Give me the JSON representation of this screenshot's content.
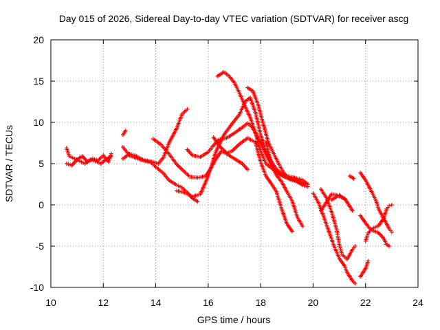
{
  "chart_data": {
    "type": "scatter",
    "title": "Day 015 of 2026, Sidereal Day-to-day VTEC variation (SDTVAR) for receiver ascg",
    "xlabel": "GPS time / hours",
    "ylabel": "SDTVAR / TECUs",
    "xlim": [
      10,
      24
    ],
    "ylim": [
      -10,
      20
    ],
    "xticks": [
      "10",
      "12",
      "14",
      "16",
      "18",
      "20",
      "22",
      "24"
    ],
    "yticks": [
      "-10",
      "-5",
      "0",
      "5",
      "10",
      "15",
      "20"
    ],
    "grid": true,
    "marker": "+",
    "color": "#ff0000",
    "series": [
      {
        "name": "s1",
        "points": [
          [
            10.6,
            6.9
          ],
          [
            10.7,
            5.9
          ],
          [
            10.9,
            5.6
          ],
          [
            11.1,
            5.3
          ],
          [
            11.3,
            5.0
          ],
          [
            11.5,
            5.5
          ],
          [
            11.7,
            5.3
          ],
          [
            11.9,
            5.0
          ],
          [
            12.1,
            5.5
          ],
          [
            12.3,
            5.9
          ]
        ]
      },
      {
        "name": "s2",
        "points": [
          [
            10.6,
            5.0
          ],
          [
            10.8,
            4.8
          ],
          [
            11.0,
            5.5
          ],
          [
            11.2,
            5.9
          ],
          [
            11.4,
            5.2
          ],
          [
            11.6,
            5.6
          ],
          [
            11.8,
            5.4
          ],
          [
            12.0,
            6.0
          ],
          [
            12.2,
            5.2
          ],
          [
            12.3,
            6.2
          ]
        ]
      },
      {
        "name": "s3",
        "points": [
          [
            12.75,
            8.5
          ],
          [
            12.85,
            9.0
          ]
        ]
      },
      {
        "name": "s4",
        "points": [
          [
            12.75,
            5.6
          ],
          [
            13.0,
            6.2
          ],
          [
            13.2,
            6.0
          ],
          [
            13.5,
            5.5
          ],
          [
            13.8,
            5.2
          ],
          [
            14.0,
            4.6
          ],
          [
            14.3,
            3.8
          ],
          [
            14.5,
            3.0
          ],
          [
            14.8,
            2.4
          ],
          [
            15.0,
            2.1
          ],
          [
            15.2,
            1.5
          ],
          [
            15.4,
            0.8
          ],
          [
            15.6,
            0.4
          ]
        ]
      },
      {
        "name": "s5",
        "points": [
          [
            12.75,
            7.0
          ],
          [
            13.0,
            6.0
          ],
          [
            13.3,
            5.6
          ],
          [
            13.6,
            5.3
          ],
          [
            13.9,
            5.2
          ],
          [
            14.1,
            5.0
          ],
          [
            14.3,
            5.8
          ],
          [
            14.5,
            7.5
          ],
          [
            14.8,
            9.3
          ],
          [
            15.0,
            11.0
          ],
          [
            15.2,
            11.6
          ]
        ]
      },
      {
        "name": "s6",
        "points": [
          [
            13.9,
            8.0
          ],
          [
            14.2,
            7.3
          ],
          [
            14.5,
            6.2
          ],
          [
            14.8,
            4.9
          ],
          [
            15.1,
            4.0
          ],
          [
            15.3,
            3.4
          ],
          [
            15.6,
            3.3
          ],
          [
            15.9,
            3.5
          ],
          [
            16.1,
            4.4
          ],
          [
            16.3,
            5.6
          ],
          [
            16.5,
            6.5
          ],
          [
            16.7,
            6.2
          ],
          [
            17.0,
            5.6
          ],
          [
            17.3,
            5.0
          ],
          [
            17.5,
            4.3
          ]
        ]
      },
      {
        "name": "s7",
        "points": [
          [
            15.2,
            6.7
          ],
          [
            15.4,
            6.0
          ],
          [
            15.7,
            5.8
          ],
          [
            16.0,
            6.4
          ],
          [
            16.2,
            7.2
          ],
          [
            16.4,
            7.9
          ],
          [
            16.7,
            8.1
          ],
          [
            17.0,
            8.7
          ],
          [
            17.3,
            9.4
          ],
          [
            17.5,
            9.9
          ],
          [
            17.7,
            9.3
          ],
          [
            18.0,
            7.5
          ],
          [
            18.3,
            5.5
          ],
          [
            18.6,
            3.9
          ],
          [
            18.9,
            3.4
          ],
          [
            19.2,
            3.1
          ],
          [
            19.5,
            2.9
          ]
        ]
      },
      {
        "name": "s8",
        "points": [
          [
            14.8,
            1.7
          ],
          [
            15.1,
            1.5
          ],
          [
            15.4,
            1.0
          ],
          [
            15.7,
            1.3
          ],
          [
            16.0,
            3.5
          ],
          [
            16.3,
            6.5
          ],
          [
            16.6,
            8.5
          ],
          [
            16.9,
            9.8
          ],
          [
            17.2,
            11.0
          ],
          [
            17.4,
            12.5
          ],
          [
            17.6,
            13.0
          ],
          [
            17.8,
            11.2
          ],
          [
            18.0,
            8.5
          ],
          [
            18.2,
            6.5
          ],
          [
            18.4,
            5.3
          ],
          [
            18.6,
            4.3
          ],
          [
            18.8,
            3.8
          ],
          [
            19.0,
            3.5
          ],
          [
            19.3,
            3.3
          ],
          [
            19.6,
            3.0
          ],
          [
            19.8,
            2.5
          ]
        ]
      },
      {
        "name": "s9",
        "points": [
          [
            16.35,
            15.6
          ],
          [
            16.6,
            16.1
          ],
          [
            16.8,
            15.6
          ],
          [
            17.0,
            14.8
          ],
          [
            17.2,
            13.5
          ],
          [
            17.4,
            12.0
          ],
          [
            17.6,
            10.6
          ],
          [
            17.8,
            8.8
          ],
          [
            17.9,
            7.5
          ],
          [
            18.0,
            6.5
          ],
          [
            18.2,
            5.0
          ],
          [
            18.4,
            4.5
          ],
          [
            18.7,
            3.8
          ],
          [
            19.0,
            3.3
          ],
          [
            19.3,
            3.0
          ],
          [
            19.6,
            2.4
          ],
          [
            19.8,
            2.2
          ]
        ]
      },
      {
        "name": "s10",
        "points": [
          [
            16.2,
            8.2
          ],
          [
            16.4,
            7.2
          ],
          [
            16.7,
            6.3
          ],
          [
            16.9,
            6.5
          ],
          [
            17.2,
            7.4
          ],
          [
            17.5,
            8.1
          ],
          [
            17.8,
            7.6
          ],
          [
            18.0,
            5.2
          ],
          [
            18.2,
            3.5
          ],
          [
            18.4,
            2.6
          ],
          [
            18.6,
            1.6
          ],
          [
            18.8,
            -0.5
          ],
          [
            19.0,
            -2.3
          ],
          [
            19.2,
            -3.2
          ]
        ]
      },
      {
        "name": "s11",
        "points": [
          [
            17.5,
            14.2
          ],
          [
            17.7,
            13.8
          ],
          [
            17.9,
            12.2
          ],
          [
            18.1,
            9.8
          ],
          [
            18.3,
            7.5
          ],
          [
            18.5,
            6.2
          ],
          [
            18.7,
            4.9
          ],
          [
            18.9,
            3.8
          ],
          [
            19.1,
            3.1
          ],
          [
            19.4,
            2.8
          ],
          [
            19.7,
            2.6
          ]
        ]
      },
      {
        "name": "s12",
        "points": [
          [
            18.2,
            7.6
          ],
          [
            18.4,
            5.0
          ],
          [
            18.6,
            3.6
          ],
          [
            18.8,
            2.8
          ],
          [
            19.0,
            1.6
          ],
          [
            19.2,
            0.5
          ],
          [
            19.4,
            -1.5
          ],
          [
            19.6,
            -2.6
          ]
        ]
      },
      {
        "name": "s13",
        "points": [
          [
            20.0,
            1.4
          ],
          [
            20.2,
            0.3
          ],
          [
            20.4,
            -1.4
          ],
          [
            20.6,
            -3.2
          ],
          [
            20.8,
            -5.0
          ],
          [
            21.0,
            -6.5
          ],
          [
            21.2,
            -7.4
          ],
          [
            21.3,
            -8.2
          ],
          [
            21.5,
            -9.2
          ],
          [
            21.6,
            -9.5
          ]
        ]
      },
      {
        "name": "s14",
        "points": [
          [
            20.3,
            1.9
          ],
          [
            20.5,
            0.9
          ],
          [
            20.7,
            -0.8
          ],
          [
            20.9,
            -3.0
          ],
          [
            21.0,
            -4.8
          ],
          [
            21.1,
            -6.0
          ],
          [
            21.3,
            -6.6
          ],
          [
            21.5,
            -5.4
          ],
          [
            21.6,
            -5.0
          ]
        ]
      },
      {
        "name": "s15",
        "points": [
          [
            20.3,
            -0.7
          ],
          [
            20.5,
            0.3
          ],
          [
            20.7,
            1.3
          ],
          [
            20.9,
            1.2
          ],
          [
            21.0,
            1.0
          ],
          [
            21.2,
            0.8
          ],
          [
            21.4,
            -0.2
          ],
          [
            21.5,
            -0.7
          ]
        ]
      },
      {
        "name": "s16",
        "points": [
          [
            20.7,
            0.6
          ],
          [
            20.9,
            1.0
          ],
          [
            21.0,
            1.2
          ],
          [
            21.2,
            0.7
          ]
        ]
      },
      {
        "name": "s17",
        "points": [
          [
            21.4,
            3.5
          ],
          [
            21.55,
            3.2
          ]
        ]
      },
      {
        "name": "s18",
        "points": [
          [
            21.8,
            -8.7
          ],
          [
            22.0,
            -7.7
          ],
          [
            22.1,
            -6.8
          ]
        ]
      },
      {
        "name": "s19",
        "points": [
          [
            21.8,
            3.9
          ],
          [
            22.0,
            3.0
          ],
          [
            22.2,
            1.8
          ],
          [
            22.4,
            0.5
          ],
          [
            22.5,
            -0.5
          ],
          [
            22.7,
            -1.7
          ],
          [
            22.9,
            -2.9
          ],
          [
            23.0,
            -3.3
          ]
        ]
      },
      {
        "name": "s20",
        "points": [
          [
            21.8,
            -1.3
          ],
          [
            22.0,
            -2.2
          ],
          [
            22.2,
            -3.0
          ],
          [
            22.5,
            -3.4
          ],
          [
            22.7,
            -4.1
          ],
          [
            22.8,
            -4.8
          ],
          [
            22.9,
            -5.0
          ]
        ]
      },
      {
        "name": "s21",
        "points": [
          [
            22.0,
            -4.4
          ],
          [
            22.1,
            -3.4
          ],
          [
            22.3,
            -2.8
          ],
          [
            22.5,
            -2.5
          ],
          [
            22.7,
            -1.6
          ],
          [
            22.8,
            -0.5
          ],
          [
            22.9,
            -0.1
          ],
          [
            23.0,
            0.0
          ]
        ]
      }
    ]
  }
}
